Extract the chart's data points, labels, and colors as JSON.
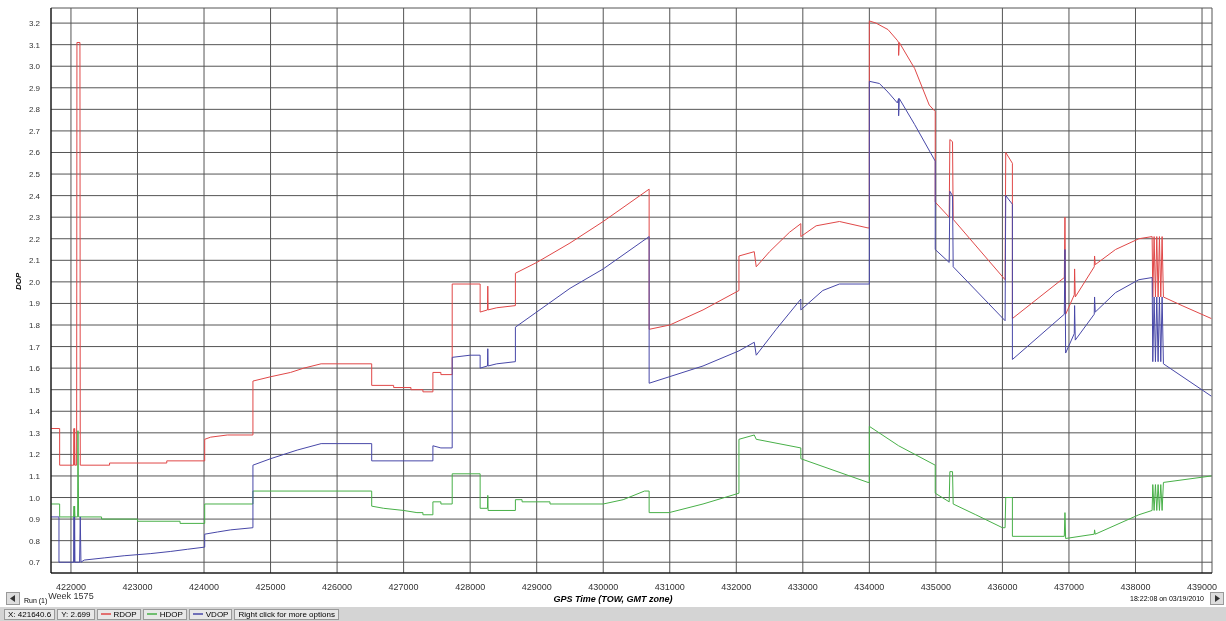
{
  "chart_data": {
    "type": "line",
    "xlabel": "GPS Time (TOW, GMT zone)",
    "ylabel": "DOP",
    "xlim": [
      421700,
      439150
    ],
    "ylim": [
      0.65,
      3.27
    ],
    "xticks": [
      {
        "value": 422000,
        "label": "422000\nWeek 1575"
      },
      423000,
      424000,
      425000,
      426000,
      427000,
      428000,
      429000,
      430000,
      431000,
      432000,
      433000,
      434000,
      435000,
      436000,
      437000,
      438000,
      439000
    ],
    "yticks": [
      0.7,
      0.8,
      0.9,
      {
        "value": 1,
        "label": "1.0"
      },
      1.1,
      1.2,
      1.3,
      1.4,
      1.5,
      1.6,
      1.7,
      1.8,
      1.9,
      {
        "value": 2,
        "label": "2.0"
      },
      2.1,
      2.2,
      2.3,
      2.4,
      2.5,
      2.6,
      2.7,
      2.8,
      2.9,
      {
        "value": 3,
        "label": "3.0"
      },
      3.1,
      3.2
    ],
    "grid": true,
    "legend": "bottom left",
    "annotations": [
      "X: 421640.6",
      "Y: 2.699",
      "Right click for more options",
      "Run (1)",
      "18:22:08 on 03/19/2010"
    ],
    "series": [
      {
        "name": "RDOP",
        "color": "#e04848",
        "x": [
          421700,
          421830,
          421830,
          422040,
          422045,
          422050,
          422055,
          422060,
          422085,
          422090,
          422135,
          422140,
          422580,
          422580,
          423440,
          423440,
          424010,
          424010,
          424100,
          424350,
          424735,
          424735,
          425000,
          425300,
          425500,
          425760,
          426520,
          426520,
          426850,
          426850,
          427110,
          427110,
          427290,
          427290,
          427440,
          427440,
          427560,
          427560,
          427730,
          427730,
          428150,
          428150,
          428260,
          428265,
          428270,
          428400,
          428680,
          428680,
          429000,
          429500,
          430000,
          430690,
          430690,
          431000,
          431500,
          432040,
          432040,
          432270,
          432300,
          432500,
          432800,
          432970,
          432970,
          433200,
          433550,
          433980,
          434000,
          434000,
          434100,
          434280,
          434420,
          434440,
          434440,
          434450,
          434680,
          434900,
          434990,
          434990,
          435200,
          435210,
          435250,
          435260,
          436040,
          436050,
          436150,
          436150,
          436930,
          436940,
          436950,
          436980,
          437080,
          437085,
          437095,
          437380,
          437385,
          437395,
          437700,
          438050,
          438250,
          438260,
          438280,
          438300,
          438320,
          438340,
          438360,
          438380,
          438400,
          438420,
          438700,
          439140
        ],
        "values": [
          1.32,
          1.32,
          1.15,
          1.15,
          1.32,
          1.15,
          1.32,
          1.15,
          1.15,
          3.11,
          3.11,
          1.15,
          1.15,
          1.16,
          1.16,
          1.17,
          1.17,
          1.27,
          1.28,
          1.29,
          1.29,
          1.54,
          1.56,
          1.58,
          1.6,
          1.62,
          1.62,
          1.52,
          1.52,
          1.51,
          1.51,
          1.5,
          1.5,
          1.49,
          1.49,
          1.58,
          1.58,
          1.57,
          1.57,
          1.99,
          1.99,
          1.86,
          1.87,
          1.98,
          1.87,
          1.88,
          1.89,
          2.04,
          2.09,
          2.18,
          2.28,
          2.43,
          1.78,
          1.8,
          1.87,
          1.96,
          2.12,
          2.14,
          2.07,
          2.14,
          2.23,
          2.27,
          2.21,
          2.26,
          2.28,
          2.25,
          2.25,
          3.21,
          3.2,
          3.17,
          3.12,
          3.11,
          3.05,
          3.11,
          2.99,
          2.82,
          2.79,
          2.37,
          2.3,
          2.66,
          2.65,
          2.29,
          2.01,
          2.6,
          2.55,
          1.83,
          2.02,
          2.3,
          1.85,
          1.87,
          1.94,
          2.06,
          1.93,
          2.07,
          2.12,
          2.08,
          2.15,
          2.2,
          2.21,
          1.93,
          2.21,
          1.93,
          2.21,
          1.93,
          2.21,
          1.93,
          2.21,
          1.93,
          1.89,
          1.83
        ]
      },
      {
        "name": "HDOP",
        "color": "#48b048",
        "x": [
          421700,
          421830,
          421830,
          422040,
          422045,
          422050,
          422055,
          422060,
          422100,
          422105,
          422115,
          422460,
          422460,
          423000,
          423000,
          423640,
          423640,
          424010,
          424010,
          424735,
          424735,
          426520,
          426520,
          426700,
          427000,
          427200,
          427290,
          427290,
          427440,
          427440,
          427560,
          427560,
          427730,
          427730,
          428150,
          428150,
          428260,
          428265,
          428270,
          428680,
          428680,
          428780,
          428780,
          429200,
          429200,
          430000,
          430300,
          430620,
          430690,
          430690,
          430990,
          431500,
          432040,
          432040,
          432270,
          432300,
          432970,
          432970,
          433980,
          434000,
          434000,
          434440,
          434990,
          434990,
          435200,
          435210,
          435250,
          435260,
          435600,
          436000,
          436040,
          436050,
          436150,
          436150,
          436930,
          436940,
          436950,
          437380,
          437385,
          437395,
          438050,
          438250,
          438260,
          438280,
          438300,
          438320,
          438340,
          438360,
          438380,
          438400,
          438420,
          439140
        ],
        "values": [
          0.97,
          0.97,
          0.91,
          0.91,
          0.96,
          0.91,
          0.96,
          0.91,
          0.91,
          1.31,
          0.91,
          0.91,
          0.9,
          0.9,
          0.89,
          0.89,
          0.88,
          0.88,
          0.97,
          0.97,
          1.03,
          1.03,
          0.96,
          0.95,
          0.94,
          0.93,
          0.93,
          0.92,
          0.92,
          0.98,
          0.98,
          0.97,
          0.97,
          1.11,
          1.11,
          0.95,
          0.95,
          1.01,
          0.94,
          0.94,
          0.99,
          0.99,
          0.98,
          0.98,
          0.97,
          0.97,
          0.99,
          1.03,
          1.03,
          0.93,
          0.93,
          0.97,
          1.02,
          1.27,
          1.29,
          1.27,
          1.23,
          1.18,
          1.07,
          1.07,
          1.33,
          1.24,
          1.15,
          1.02,
          0.98,
          1.12,
          1.12,
          0.97,
          0.92,
          0.86,
          0.86,
          1.0,
          1.0,
          0.82,
          0.82,
          0.93,
          0.81,
          0.83,
          0.85,
          0.83,
          0.92,
          0.94,
          1.06,
          0.94,
          1.06,
          0.94,
          1.06,
          0.94,
          1.06,
          0.94,
          1.07,
          1.1
        ]
      },
      {
        "name": "VDOP",
        "color": "#4848a8",
        "x": [
          421700,
          421820,
          421820,
          422040,
          422045,
          422050,
          422055,
          422060,
          422130,
          422140,
          422150,
          422200,
          422500,
          422800,
          423200,
          423500,
          423750,
          424010,
          424010,
          424200,
          424400,
          424735,
          424735,
          425000,
          425400,
          425760,
          426520,
          426520,
          427440,
          427440,
          427560,
          427730,
          427730,
          428000,
          428150,
          428150,
          428260,
          428265,
          428270,
          428400,
          428680,
          428680,
          429500,
          430000,
          430690,
          430690,
          431500,
          432040,
          432270,
          432300,
          432600,
          432970,
          432970,
          433300,
          433550,
          433980,
          434000,
          434000,
          434150,
          434280,
          434420,
          434440,
          434440,
          434450,
          434680,
          434990,
          434990,
          435200,
          435210,
          435250,
          435260,
          436040,
          436050,
          436150,
          436150,
          436930,
          436940,
          436950,
          437080,
          437085,
          437095,
          437380,
          437385,
          437395,
          437700,
          438050,
          438250,
          438260,
          438280,
          438300,
          438320,
          438340,
          438360,
          438380,
          438400,
          438420,
          439140
        ],
        "values": [
          0.91,
          0.91,
          0.7,
          0.7,
          0.91,
          0.7,
          0.91,
          0.7,
          0.7,
          0.91,
          0.7,
          0.71,
          0.72,
          0.73,
          0.74,
          0.75,
          0.76,
          0.77,
          0.83,
          0.84,
          0.85,
          0.86,
          1.15,
          1.18,
          1.22,
          1.25,
          1.25,
          1.17,
          1.17,
          1.24,
          1.23,
          1.23,
          1.65,
          1.66,
          1.66,
          1.6,
          1.61,
          1.69,
          1.61,
          1.62,
          1.63,
          1.79,
          1.97,
          2.06,
          2.21,
          1.53,
          1.61,
          1.68,
          1.72,
          1.66,
          1.78,
          1.92,
          1.87,
          1.96,
          1.99,
          1.99,
          1.99,
          2.93,
          2.92,
          2.88,
          2.83,
          2.85,
          2.77,
          2.85,
          2.73,
          2.56,
          2.15,
          2.09,
          2.42,
          2.4,
          2.07,
          1.82,
          2.4,
          2.36,
          1.64,
          1.85,
          2.15,
          1.67,
          1.76,
          1.89,
          1.73,
          1.85,
          1.93,
          1.86,
          1.95,
          2.01,
          2.02,
          1.63,
          1.93,
          1.63,
          1.93,
          1.63,
          1.93,
          1.63,
          1.93,
          1.62,
          1.47
        ]
      }
    ]
  }
}
